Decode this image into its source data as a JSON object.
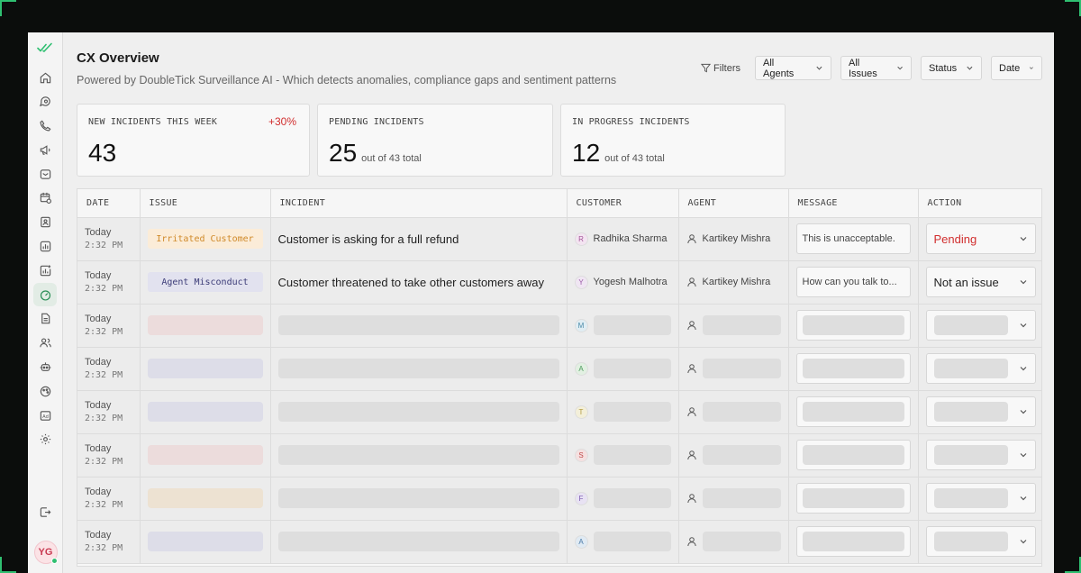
{
  "header": {
    "title": "CX Overview",
    "subtitle": "Powered by DoubleTick Surveillance AI - Which detects anomalies, compliance gaps and sentiment patterns"
  },
  "filters": {
    "label": "Filters",
    "agents": "All Agents",
    "issues": "All Issues",
    "status": "Status",
    "date": "Date"
  },
  "cards": [
    {
      "label": "NEW INCIDENTS THIS WEEK",
      "value": "43",
      "badge": "+30%",
      "sub": ""
    },
    {
      "label": "PENDING INCIDENTS",
      "value": "25",
      "badge": "",
      "sub": "out of 43 total"
    },
    {
      "label": "IN PROGRESS INCIDENTS",
      "value": "12",
      "badge": "",
      "sub": "out of 43 total"
    }
  ],
  "table": {
    "columns": [
      "DATE",
      "ISSUE",
      "INCIDENT",
      "CUSTOMER",
      "AGENT",
      "MESSAGE",
      "ACTION"
    ],
    "rows": [
      {
        "day": "Today",
        "time": "2:32 PM",
        "issue": "Irritated Customer",
        "issue_bg": "#fbecd8",
        "issue_color": "#d08a2a",
        "incident": "Customer is asking for a full refund",
        "avatar": "R",
        "avatar_bg": "#f3e4f1",
        "avatar_color": "#a25397",
        "customer": "Radhika Sharma",
        "agent": "Kartikey Mishra",
        "message": "This is unacceptable.",
        "action": "Pending",
        "action_color": "#d12e2e"
      },
      {
        "day": "Today",
        "time": "2:32 PM",
        "issue": "Agent Misconduct",
        "issue_bg": "#e2e2ef",
        "issue_color": "#3c3c78",
        "incident": "Customer threatened to take other customers away",
        "avatar": "Y",
        "avatar_bg": "#f0e6f3",
        "avatar_color": "#9b5aa8",
        "customer": "Yogesh Malhotra",
        "agent": "Kartikey Mishra",
        "message": "How can you talk to...",
        "action": "Not an issue",
        "action_color": "#1f1f1f"
      },
      {
        "day": "Today",
        "time": "2:32 PM",
        "avatar": "M",
        "avatar_bg": "#e0edf3",
        "avatar_color": "#4a8aa8",
        "skel_color": "#ecdcdc"
      },
      {
        "day": "Today",
        "time": "2:32 PM",
        "avatar": "A",
        "avatar_bg": "#e2f0e2",
        "avatar_color": "#4a9a5a",
        "skel_color": "#dddde8"
      },
      {
        "day": "Today",
        "time": "2:32 PM",
        "avatar": "T",
        "avatar_bg": "#f3efd9",
        "avatar_color": "#b0983a",
        "skel_color": "#dddde8"
      },
      {
        "day": "Today",
        "time": "2:32 PM",
        "avatar": "S",
        "avatar_bg": "#f5e0e0",
        "avatar_color": "#c04a4a",
        "skel_color": "#ecdcdc"
      },
      {
        "day": "Today",
        "time": "2:32 PM",
        "avatar": "F",
        "avatar_bg": "#e8e2f3",
        "avatar_color": "#7a5ab0",
        "skel_color": "#ede2d2"
      },
      {
        "day": "Today",
        "time": "2:32 PM",
        "avatar": "A",
        "avatar_bg": "#e0eaf3",
        "avatar_color": "#4a7aa8",
        "skel_color": "#dddde8"
      }
    ]
  },
  "user": {
    "initials": "YG"
  },
  "colors": {
    "accent": "#2fbf71",
    "alert": "#d12e2e"
  }
}
